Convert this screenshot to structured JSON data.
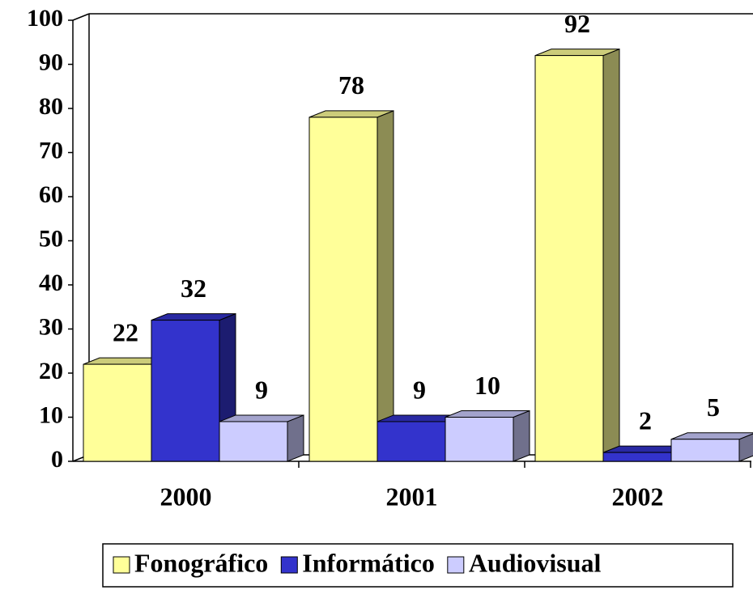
{
  "chart_data": {
    "type": "bar3d",
    "categories": [
      "2000",
      "2001",
      "2002"
    ],
    "series": [
      {
        "name": "Fonográfico",
        "color": "#ffff99",
        "values": [
          22,
          78,
          92
        ]
      },
      {
        "name": "Informático",
        "color": "#3333cc",
        "values": [
          32,
          9,
          2
        ]
      },
      {
        "name": "Audiovisual",
        "color": "#ccccff",
        "values": [
          9,
          10,
          5
        ]
      }
    ],
    "ylim": [
      0,
      100
    ],
    "yticks": [
      0,
      10,
      20,
      30,
      40,
      50,
      60,
      70,
      80,
      90,
      100
    ],
    "legend": "bottom"
  }
}
